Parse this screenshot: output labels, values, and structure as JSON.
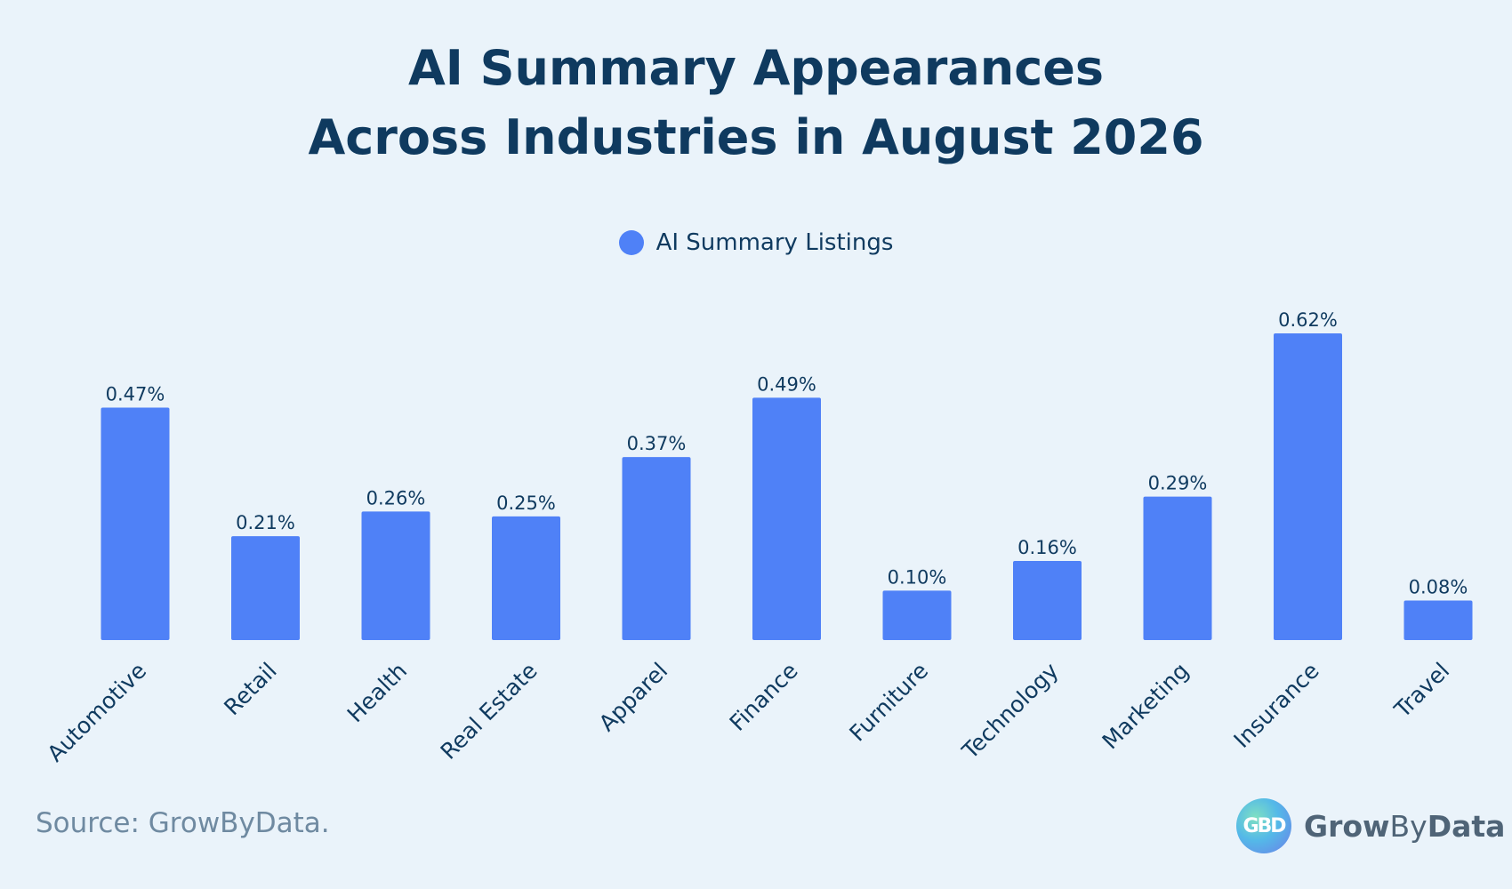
{
  "title_line1": "AI Summary Appearances",
  "title_line2": "Across Industries in August 2026",
  "source": "Source: GrowByData.",
  "brand": {
    "logo_text": "GBD",
    "name_bold1": "Grow",
    "name_thin": "By",
    "name_bold2": "Data"
  },
  "colors": {
    "background": "#eaf3fa",
    "bar": "#4f81f7",
    "text": "#0f3a5f"
  },
  "chart_data": {
    "type": "bar",
    "legend": {
      "label": "AI Summary Listings",
      "placement": "top-center"
    },
    "categories": [
      "Automotive",
      "Retail",
      "Health",
      "Real Estate",
      "Apparel",
      "Finance",
      "Furniture",
      "Technology",
      "Marketing",
      "Insurance",
      "Travel"
    ],
    "series": [
      {
        "name": "AI Summary Listings",
        "values": [
          0.47,
          0.21,
          0.26,
          0.25,
          0.37,
          0.49,
          0.1,
          0.16,
          0.29,
          0.62,
          0.08
        ],
        "labels": [
          "0.47%",
          "0.21%",
          "0.26%",
          "0.25%",
          "0.37%",
          "0.49%",
          "0.10%",
          "0.16%",
          "0.29%",
          "0.62%",
          "0.08%"
        ]
      }
    ],
    "ylim": [
      0,
      0.62
    ],
    "grid": false,
    "xlabel": "",
    "ylabel": ""
  }
}
